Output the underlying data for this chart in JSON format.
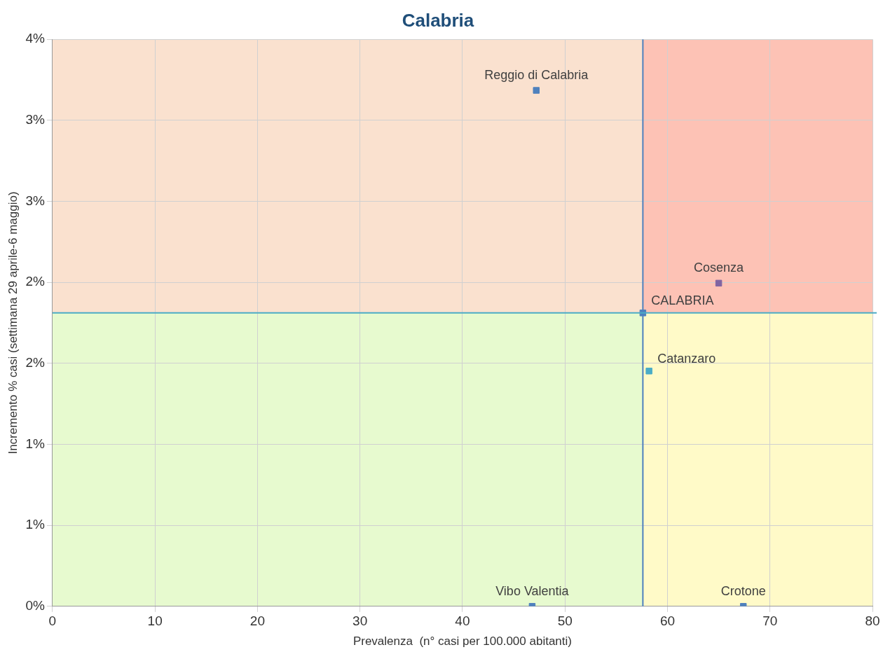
{
  "chart_data": {
    "type": "scatter",
    "title": "Calabria",
    "xlabel": "Prevalenza  (n° casi per 100.000 abitanti)",
    "ylabel": "Incremento % casi (settimana 29 aprile-6 maggio)",
    "x": [
      47.2,
      65.0,
      57.6,
      58.2,
      46.8,
      67.4
    ],
    "values": [
      3.64,
      2.28,
      2.07,
      1.66,
      0,
      0
    ],
    "colors": [
      "#4f81bd",
      "#8064a2",
      "#4f81bd",
      "#4bacc6",
      "#4f81bd",
      "#4f81bd"
    ],
    "marker": "square",
    "grid": true,
    "legend": false,
    "xlim": [
      0,
      80
    ],
    "xticks": [
      0,
      10,
      20,
      30,
      40,
      50,
      60,
      70,
      80
    ],
    "ylim": [
      0,
      4
    ],
    "yticks": [
      {
        "value": 0,
        "label": "0%"
      },
      {
        "value": 0.571,
        "label": "1%"
      },
      {
        "value": 1.143,
        "label": "1%"
      },
      {
        "value": 1.714,
        "label": "2%"
      },
      {
        "value": 2.286,
        "label": "2%"
      },
      {
        "value": 2.857,
        "label": "3%"
      },
      {
        "value": 3.429,
        "label": "3%"
      },
      {
        "value": 4,
        "label": "4%"
      }
    ],
    "ref_lines": [
      {
        "axis": "x",
        "value": 57.6,
        "color": "#4f81bd"
      },
      {
        "axis": "y",
        "value": 2.07,
        "color": "#4bacc6"
      }
    ],
    "annotations": [
      {
        "text": "Reggio di Calabria",
        "x": 47.2,
        "y": 3.64
      },
      {
        "text": "Cosenza",
        "x": 65.0,
        "y": 2.28
      },
      {
        "text": "CALABRIA",
        "x": 57.6,
        "y": 2.07
      },
      {
        "text": "Catanzaro",
        "x": 58.2,
        "y": 1.66
      },
      {
        "text": "Vibo Valentia",
        "x": 46.8,
        "y": 0
      },
      {
        "text": "Crotone",
        "x": 67.4,
        "y": 0
      }
    ]
  }
}
